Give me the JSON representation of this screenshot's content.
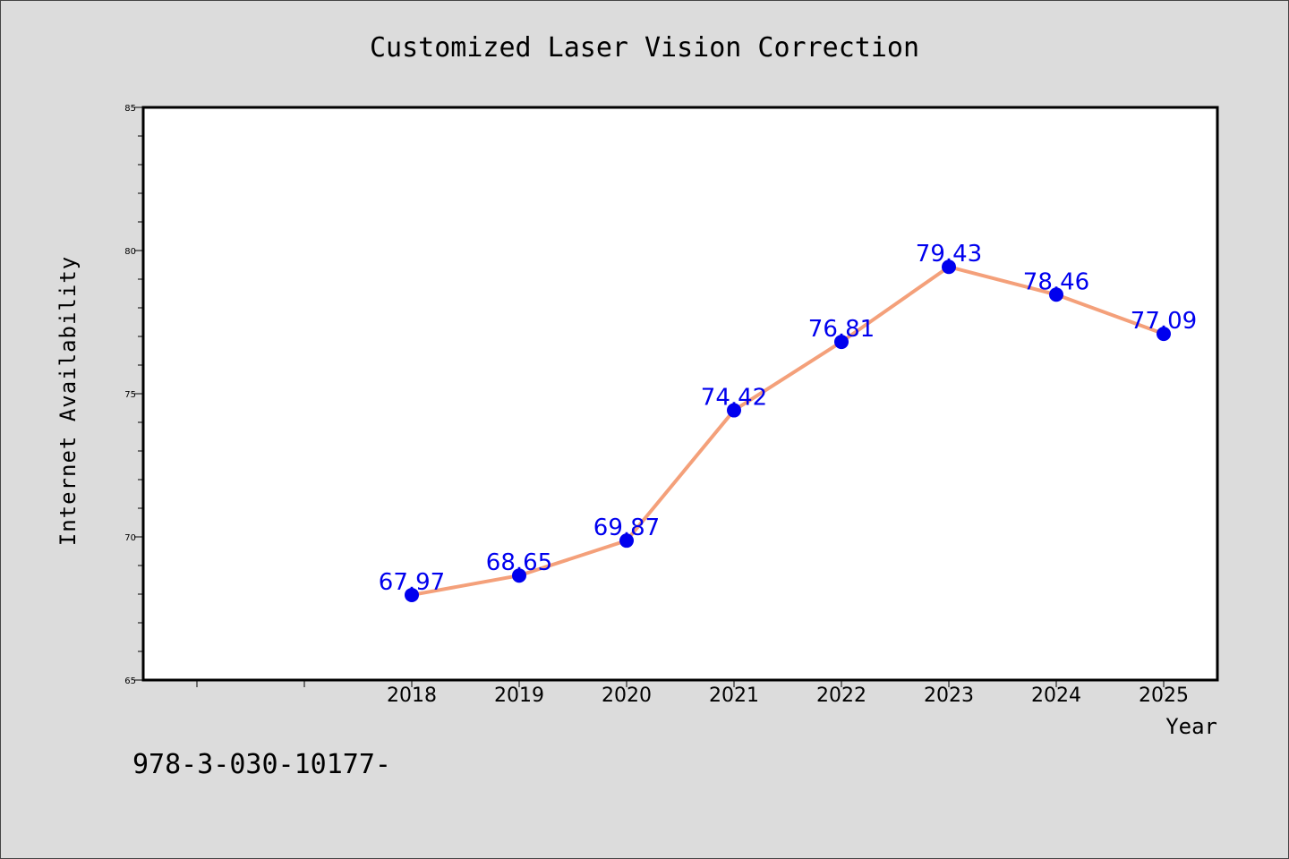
{
  "chart_data": {
    "type": "line",
    "title": "Customized Laser Vision Correction",
    "xlabel": "Year",
    "ylabel": "Internet Availability",
    "categories": [
      "2018",
      "2019",
      "2020",
      "2021",
      "2022",
      "2023",
      "2024",
      "2025"
    ],
    "series": [
      {
        "values": [
          67.97,
          68.65,
          69.87,
          74.42,
          76.81,
          79.43,
          78.46,
          77.09
        ],
        "data_labels": [
          "67.97",
          "68.65",
          "69.87",
          "74.42",
          "76.81",
          "79.43",
          "78.46",
          "77.09"
        ]
      }
    ],
    "ylim": [
      65,
      85
    ],
    "yticks": [
      "65",
      "70",
      "75",
      "80",
      "85"
    ],
    "grid": false,
    "line_color": "#f4a07a",
    "marker_color": "#0000ee",
    "label_color": "#0000ee"
  },
  "footer_text": "978-3-030-10177-"
}
